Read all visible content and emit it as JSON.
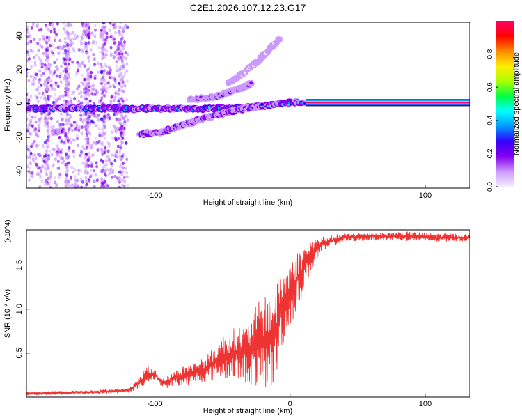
{
  "figure": {
    "title": "C2E1.2026.107.12.23.G17"
  },
  "chart_data": [
    {
      "type": "heatmap",
      "name": "spectrogram",
      "xlabel": "Height of straight line (km)",
      "ylabel": "Frequency (Hz)",
      "xlim": [
        -195,
        133
      ],
      "ylim": [
        -50,
        48
      ],
      "xticks": [
        -100,
        100
      ],
      "xtick_labels": [
        "-100",
        "100"
      ],
      "yticks": [
        -40,
        -20,
        0,
        20,
        40
      ],
      "ytick_labels": [
        "-40",
        "-20",
        "0",
        "20",
        "40"
      ],
      "colorbar": {
        "label": "Normalized spectral amplitude",
        "range": [
          0,
          1
        ],
        "ticks": [
          0.0,
          0.2,
          0.4,
          0.6,
          0.8
        ],
        "tick_labels": [
          "0.0",
          "0.2",
          "0.4",
          "0.6",
          "0.8"
        ],
        "colors": [
          "#f4eeff",
          "#cc99ff",
          "#8800ee",
          "#3300ff",
          "#0099ff",
          "#00ffff",
          "#00ff44",
          "#aaff00",
          "#ffee00",
          "#ff8800",
          "#ff0000",
          "#ff0066"
        ]
      },
      "noise_region_x": [
        -195,
        -120
      ],
      "traces": [
        {
          "name": "main-tone",
          "x": [
            -195,
            -150,
            -110,
            -80,
            -50,
            -25,
            -5,
            5,
            10
          ],
          "y": [
            -3,
            -3,
            -3,
            -3,
            -3,
            -2,
            0,
            1,
            0
          ],
          "amp": 0.32
        },
        {
          "name": "lower-branch",
          "x": [
            -112,
            -95,
            -80,
            -60,
            -40,
            -20
          ],
          "y": [
            -18,
            -17,
            -13,
            -8,
            -4,
            -1
          ],
          "amp": 0.22
        },
        {
          "name": "side-branch",
          "x": [
            -175,
            -168
          ],
          "y": [
            -17,
            -16
          ],
          "amp": 0.15
        },
        {
          "name": "rising-branch",
          "x": [
            -75,
            -55,
            -40,
            -28
          ],
          "y": [
            2,
            4,
            8,
            12
          ],
          "amp": 0.18
        },
        {
          "name": "upper-faint",
          "x": [
            -45,
            -35,
            -25,
            -15,
            -8
          ],
          "y": [
            12,
            18,
            24,
            32,
            38
          ],
          "amp": 0.06
        }
      ],
      "steady_tone": {
        "x": [
          12,
          133
        ],
        "y": 0.5,
        "amp": 0.97
      }
    },
    {
      "type": "line",
      "name": "snr",
      "xlabel": "Height of straight line (km)",
      "ylabel": "SNR (10 * v/v)",
      "y_multiplier_label": "(x10^4)",
      "xlim": [
        -195,
        133
      ],
      "ylim": [
        0,
        1.9
      ],
      "xticks": [
        -100,
        0,
        100
      ],
      "xtick_labels": [
        "-100",
        "0",
        "100"
      ],
      "yticks": [
        0.5,
        1.0,
        1.5
      ],
      "ytick_labels": [
        "0.5",
        "1.0",
        "1.5"
      ],
      "color": "#ee3333",
      "series": [
        {
          "name": "SNR",
          "x": [
            -195,
            -150,
            -120,
            -110,
            -106,
            -103,
            -100,
            -95,
            -90,
            -85,
            -80,
            -70,
            -60,
            -50,
            -40,
            -30,
            -25,
            -20,
            -15,
            -12,
            -10,
            -8,
            -5,
            -2,
            0,
            3,
            5,
            8,
            10,
            12,
            15,
            18,
            20,
            25,
            30,
            35,
            40,
            50,
            60,
            70,
            80,
            90,
            100,
            110,
            120,
            133
          ],
          "lo": [
            0.02,
            0.03,
            0.05,
            0.1,
            0.15,
            0.2,
            0.18,
            0.12,
            0.1,
            0.14,
            0.12,
            0.15,
            0.18,
            0.2,
            0.2,
            0.15,
            0.1,
            0.08,
            0.1,
            0.1,
            0.15,
            0.5,
            0.6,
            0.7,
            0.8,
            0.9,
            1.0,
            1.1,
            1.2,
            1.3,
            1.4,
            1.5,
            1.55,
            1.65,
            1.7,
            1.74,
            1.76,
            1.77,
            1.78,
            1.78,
            1.78,
            1.77,
            1.76,
            1.76,
            1.77,
            1.77
          ],
          "hi": [
            0.06,
            0.08,
            0.1,
            0.25,
            0.38,
            0.32,
            0.32,
            0.22,
            0.25,
            0.3,
            0.35,
            0.4,
            0.5,
            0.7,
            0.8,
            0.85,
            1.05,
            1.15,
            1.2,
            1.25,
            1.3,
            1.4,
            1.45,
            1.5,
            1.55,
            1.6,
            1.65,
            1.7,
            1.72,
            1.75,
            1.78,
            1.8,
            1.82,
            1.83,
            1.84,
            1.85,
            1.86,
            1.87,
            1.87,
            1.87,
            1.88,
            1.88,
            1.87,
            1.86,
            1.86,
            1.85
          ]
        }
      ]
    }
  ]
}
